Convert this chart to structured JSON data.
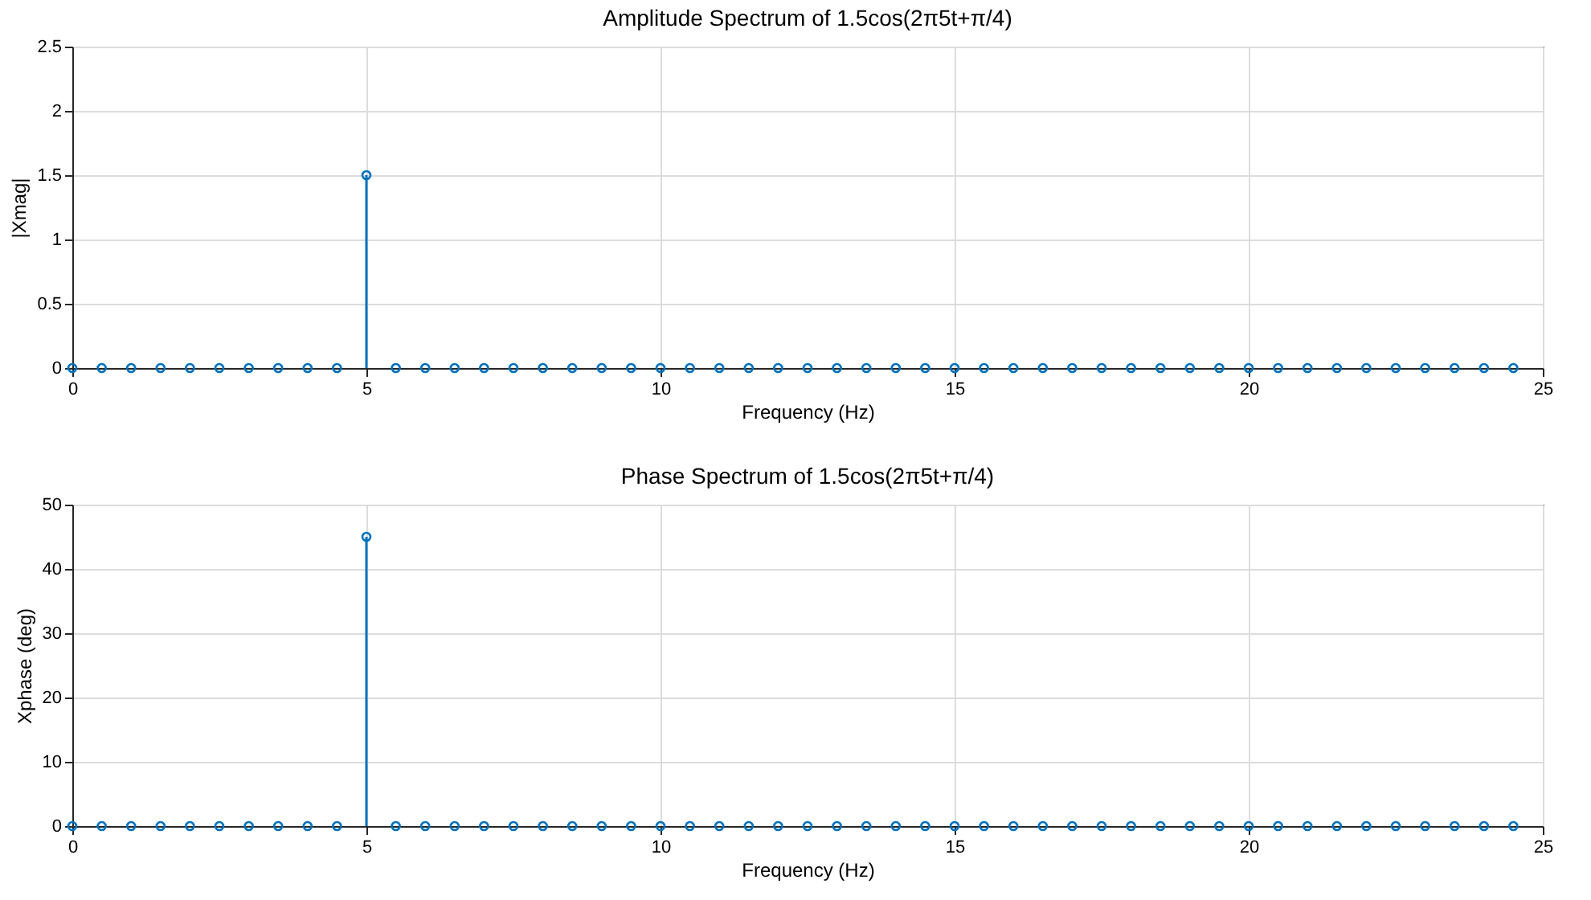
{
  "chart_data": [
    {
      "type": "lollipop",
      "title": "Amplitude Spectrum of 1.5cos(2π5t+π/4)",
      "xlabel": "Frequency (Hz)",
      "ylabel": "|Xmag|",
      "x": [
        0,
        0.5,
        1,
        1.5,
        2,
        2.5,
        3,
        3.5,
        4,
        4.5,
        5,
        5.5,
        6,
        6.5,
        7,
        7.5,
        8,
        8.5,
        9,
        9.5,
        10,
        10.5,
        11,
        11.5,
        12,
        12.5,
        13,
        13.5,
        14,
        14.5,
        15,
        15.5,
        16,
        16.5,
        17,
        17.5,
        18,
        18.5,
        19,
        19.5,
        20,
        20.5,
        21,
        21.5,
        22,
        22.5,
        23,
        23.5,
        24,
        24.5
      ],
      "series": [
        {
          "color": "#0072bd",
          "values": [
            0,
            0,
            0,
            0,
            0,
            0,
            0,
            0,
            0,
            0,
            1.5,
            0,
            0,
            0,
            0,
            0,
            0,
            0,
            0,
            0,
            0,
            0,
            0,
            0,
            0,
            0,
            0,
            0,
            0,
            0,
            0,
            0,
            0,
            0,
            0,
            0,
            0,
            0,
            0,
            0,
            0,
            0,
            0,
            0,
            0,
            0,
            0,
            0,
            0,
            0
          ]
        }
      ],
      "xlim": [
        0,
        25
      ],
      "xticks": [
        0,
        5,
        10,
        15,
        20,
        25
      ],
      "ylim": [
        0,
        2.5
      ],
      "yticks": [
        0,
        0.5,
        1,
        1.5,
        2,
        2.5
      ],
      "grid": true,
      "marker": "circle"
    },
    {
      "type": "lollipop",
      "title": "Phase Spectrum of 1.5cos(2π5t+π/4)",
      "xlabel": "Frequency (Hz)",
      "ylabel": "Xphase (deg)",
      "x": [
        0,
        0.5,
        1,
        1.5,
        2,
        2.5,
        3,
        3.5,
        4,
        4.5,
        5,
        5.5,
        6,
        6.5,
        7,
        7.5,
        8,
        8.5,
        9,
        9.5,
        10,
        10.5,
        11,
        11.5,
        12,
        12.5,
        13,
        13.5,
        14,
        14.5,
        15,
        15.5,
        16,
        16.5,
        17,
        17.5,
        18,
        18.5,
        19,
        19.5,
        20,
        20.5,
        21,
        21.5,
        22,
        22.5,
        23,
        23.5,
        24,
        24.5
      ],
      "series": [
        {
          "color": "#0072bd",
          "values": [
            0,
            0,
            0,
            0,
            0,
            0,
            0,
            0,
            0,
            0,
            45,
            0,
            0,
            0,
            0,
            0,
            0,
            0,
            0,
            0,
            0,
            0,
            0,
            0,
            0,
            0,
            0,
            0,
            0,
            0,
            0,
            0,
            0,
            0,
            0,
            0,
            0,
            0,
            0,
            0,
            0,
            0,
            0,
            0,
            0,
            0,
            0,
            0,
            0,
            0
          ]
        }
      ],
      "xlim": [
        0,
        25
      ],
      "xticks": [
        0,
        5,
        10,
        15,
        20,
        25
      ],
      "ylim": [
        0,
        50
      ],
      "yticks": [
        0,
        10,
        20,
        30,
        40,
        50
      ],
      "grid": true,
      "marker": "circle"
    }
  ]
}
